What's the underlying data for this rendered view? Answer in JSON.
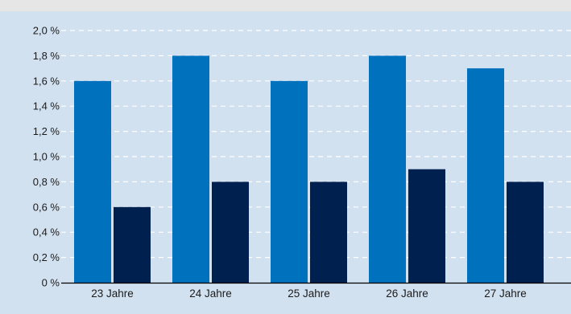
{
  "chart_data": {
    "type": "bar",
    "categories": [
      "23 Jahre",
      "24 Jahre",
      "25 Jahre",
      "26 Jahre",
      "27 Jahre"
    ],
    "series": [
      {
        "values": [
          1.6,
          1.8,
          1.6,
          1.8,
          1.7
        ],
        "color": "#0071bc"
      },
      {
        "values": [
          0.6,
          0.8,
          0.8,
          0.9,
          0.8
        ],
        "color": "#002050"
      }
    ],
    "ylim": [
      0,
      2.0
    ],
    "yticks": [
      "0 %",
      "0,2 %",
      "0,4 %",
      "0,6 %",
      "0,8 %",
      "1,0 %",
      "1,2 %",
      "1,4 %",
      "1,6 %",
      "1,8 %",
      "2,0 %"
    ],
    "grid": true,
    "colors": {
      "page_background": "#e6e6e6",
      "plot_background": "#d2e1f0",
      "gridline": "#ffffff",
      "axis_line": "#000000"
    }
  }
}
